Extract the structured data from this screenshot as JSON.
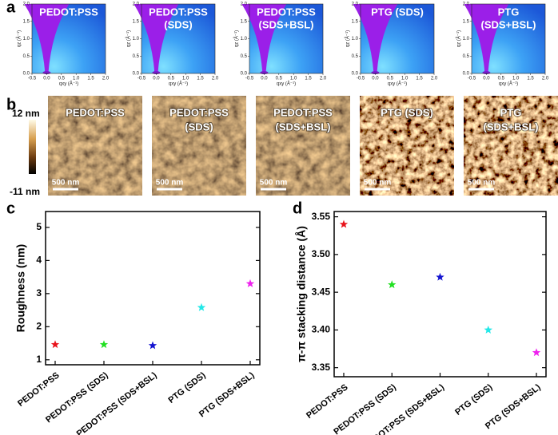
{
  "panel_labels": [
    "a",
    "b",
    "c",
    "d"
  ],
  "giwaxs": {
    "titles": [
      [
        "PEDOT:PSS"
      ],
      [
        "PEDOT:PSS",
        "(SDS)"
      ],
      [
        "PEDOT:PSS",
        "(SDS+BSL)"
      ],
      [
        "PTG (SDS)"
      ],
      [
        "PTG",
        "(SDS+BSL)"
      ]
    ],
    "x_label": "qxy (Å⁻¹)",
    "y_label": "qz (Å⁻¹)",
    "xlim": [
      -0.5,
      2.0
    ],
    "ylim": [
      0,
      2.0
    ],
    "xticks": [
      -0.5,
      {
        "value": 0,
        "label": "0.0"
      },
      0.5,
      {
        "value": 1,
        "label": "1.0"
      },
      1.5,
      {
        "value": 2,
        "label": "2.0"
      }
    ],
    "yticks": [
      {
        "value": 0,
        "label": "0.0"
      },
      0.5,
      {
        "value": 1,
        "label": "1.0"
      },
      1.5,
      {
        "value": 2,
        "label": "2.0"
      }
    ]
  },
  "afm": {
    "titles": [
      [
        "PEDOT:PSS"
      ],
      [
        "PEDOT:PSS",
        "(SDS)"
      ],
      [
        "PEDOT:PSS",
        "(SDS+BSL)"
      ],
      [
        "PTG (SDS)"
      ],
      [
        "PTG",
        "(SDS+BSL)"
      ]
    ],
    "scale_bar": "500 nm",
    "colorbar": {
      "top": "12 nm",
      "bottom": "-11 nm"
    }
  },
  "chart_data": [
    {
      "type": "scatter",
      "marker": "star",
      "y_label": "Roughness (nm)",
      "categories": [
        "PEDOT:PSS",
        "PEDOT:PSS (SDS)",
        "PEDOT:PSS (SDS+BSL)",
        "PTG (SDS)",
        "PTG (SDS+BSL)"
      ],
      "values": [
        1.46,
        1.46,
        1.43,
        2.58,
        3.3
      ],
      "colors": [
        "#e8141c",
        "#22e022",
        "#1414d0",
        "#22e8e8",
        "#ee22ee"
      ],
      "ylim": [
        0.85,
        5.48
      ],
      "yticks": [
        1,
        2,
        3,
        4,
        5
      ]
    },
    {
      "type": "scatter",
      "marker": "star",
      "y_label": "π-π stacking distance (Å)",
      "categories": [
        "PEDOT:PSS",
        "PEDOT:PSS (SDS)",
        "PEDOT:PSS (SDS+BSL)",
        "PTG (SDS)",
        "PTG (SDS+BSL)"
      ],
      "values": [
        3.54,
        3.46,
        3.47,
        3.4,
        3.37
      ],
      "colors": [
        "#e8141c",
        "#22e022",
        "#1414d0",
        "#22e8e8",
        "#ee22ee"
      ],
      "ylim": [
        3.338,
        3.557
      ],
      "yticks": [
        3.35,
        {
          "value": 3.4,
          "label": "3.40"
        },
        3.45,
        {
          "value": 3.5,
          "label": "3.50"
        },
        3.55
      ]
    }
  ]
}
